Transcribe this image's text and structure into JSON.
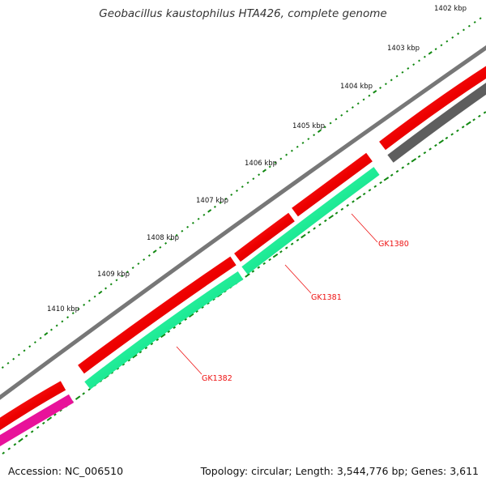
{
  "title": "Geobacillus kaustophilus HTA426, complete genome",
  "footer": {
    "accession": "Accession: NC_006510",
    "summary": "Topology: circular; Length: 3,544,776 bp; Genes: 3,611"
  },
  "colors": {
    "backbone": "#7a7a7a",
    "cds_forward": "#ee1111",
    "cds_forward_dark": "#646464",
    "cds_reverse": "#22ee99",
    "cds_reverse_alt": "#e8129a",
    "tick": "#118811",
    "label": "#ee1111"
  },
  "ticks": [
    {
      "label": "1402 kbp"
    },
    {
      "label": "1403 kbp"
    },
    {
      "label": "1404 kbp"
    },
    {
      "label": "1405 kbp"
    },
    {
      "label": "1406 kbp"
    },
    {
      "label": "1407 kbp"
    },
    {
      "label": "1408 kbp"
    },
    {
      "label": "1409 kbp"
    },
    {
      "label": "1410 kbp"
    }
  ],
  "genes": [
    {
      "name": "GK1380"
    },
    {
      "name": "GK1381"
    },
    {
      "name": "GK1382"
    }
  ]
}
